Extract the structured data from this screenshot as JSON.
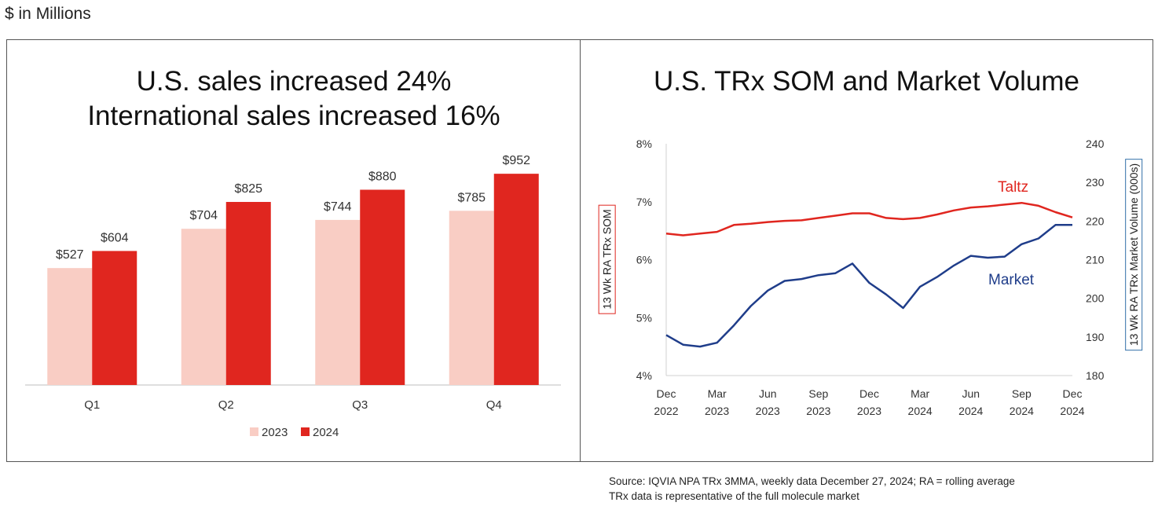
{
  "unit_note": "$ in Millions",
  "left_panel": {
    "title_lines": [
      "U.S. sales increased 24%",
      "International sales increased 16%"
    ]
  },
  "right_panel": {
    "title": "U.S. TRx SOM and Market Volume"
  },
  "source_lines": [
    "Source: IQVIA NPA TRx 3MMA, weekly data December 27, 2024; RA = rolling average",
    "TRx data is representative of the full molecule market"
  ],
  "chart_data": [
    {
      "type": "bar",
      "categories": [
        "Q1",
        "Q2",
        "Q3",
        "Q4"
      ],
      "series": [
        {
          "name": "2023",
          "values": [
            527,
            704,
            744,
            785
          ],
          "labels": [
            "$527",
            "$704",
            "$744",
            "$785"
          ],
          "color": "#f9cdc4"
        },
        {
          "name": "2024",
          "values": [
            604,
            825,
            880,
            952
          ],
          "labels": [
            "$604",
            "$825",
            "$880",
            "$952"
          ],
          "color": "#e0261f"
        }
      ],
      "ylim": [
        0,
        1080
      ],
      "grid": false,
      "legend": "bottom"
    },
    {
      "type": "line",
      "x_ticks": [
        "Dec 2022",
        "Mar 2023",
        "Jun 2023",
        "Sep 2023",
        "Dec 2023",
        "Mar 2024",
        "Jun 2024",
        "Sep 2024",
        "Dec 2024"
      ],
      "x_range": [
        "2022-12",
        "2024-12"
      ],
      "y_left": {
        "label": "13 Wk RA TRx SOM",
        "ticks": [
          "4%",
          "5%",
          "6%",
          "7%",
          "8%"
        ],
        "range": [
          4,
          8
        ]
      },
      "y_right": {
        "label": "13 Wk RA TRx Market Volume (000s)",
        "ticks": [
          "180",
          "190",
          "200",
          "210",
          "220",
          "230",
          "240"
        ],
        "range": [
          180,
          240
        ]
      },
      "series": [
        {
          "name": "Taltz",
          "axis": "left",
          "color": "#e0261f",
          "x": [
            "2022-12",
            "2023-01",
            "2023-02",
            "2023-03",
            "2023-04",
            "2023-05",
            "2023-06",
            "2023-07",
            "2023-08",
            "2023-09",
            "2023-10",
            "2023-11",
            "2023-12",
            "2024-01",
            "2024-02",
            "2024-03",
            "2024-04",
            "2024-05",
            "2024-06",
            "2024-07",
            "2024-08",
            "2024-09",
            "2024-10",
            "2024-11",
            "2024-12"
          ],
          "values": [
            6.45,
            6.42,
            6.45,
            6.48,
            6.6,
            6.62,
            6.65,
            6.67,
            6.68,
            6.72,
            6.76,
            6.8,
            6.8,
            6.72,
            6.7,
            6.72,
            6.78,
            6.85,
            6.9,
            6.92,
            6.95,
            6.98,
            6.93,
            6.82,
            6.73
          ]
        },
        {
          "name": "Market",
          "axis": "right",
          "color": "#1f3d8a",
          "x": [
            "2022-12",
            "2023-01",
            "2023-02",
            "2023-03",
            "2023-04",
            "2023-05",
            "2023-06",
            "2023-07",
            "2023-08",
            "2023-09",
            "2023-10",
            "2023-11",
            "2023-12",
            "2024-01",
            "2024-02",
            "2024-03",
            "2024-04",
            "2024-05",
            "2024-06",
            "2024-07",
            "2024-08",
            "2024-09",
            "2024-10",
            "2024-11",
            "2024-12"
          ],
          "values": [
            190.5,
            188.0,
            187.5,
            188.5,
            193.0,
            198.0,
            202.0,
            204.5,
            205.0,
            206.0,
            206.5,
            209.0,
            204.0,
            201.0,
            197.5,
            203.0,
            205.5,
            208.5,
            211.0,
            210.5,
            210.8,
            214.0,
            215.5,
            219.0,
            219.0
          ]
        }
      ],
      "grid": false
    }
  ]
}
